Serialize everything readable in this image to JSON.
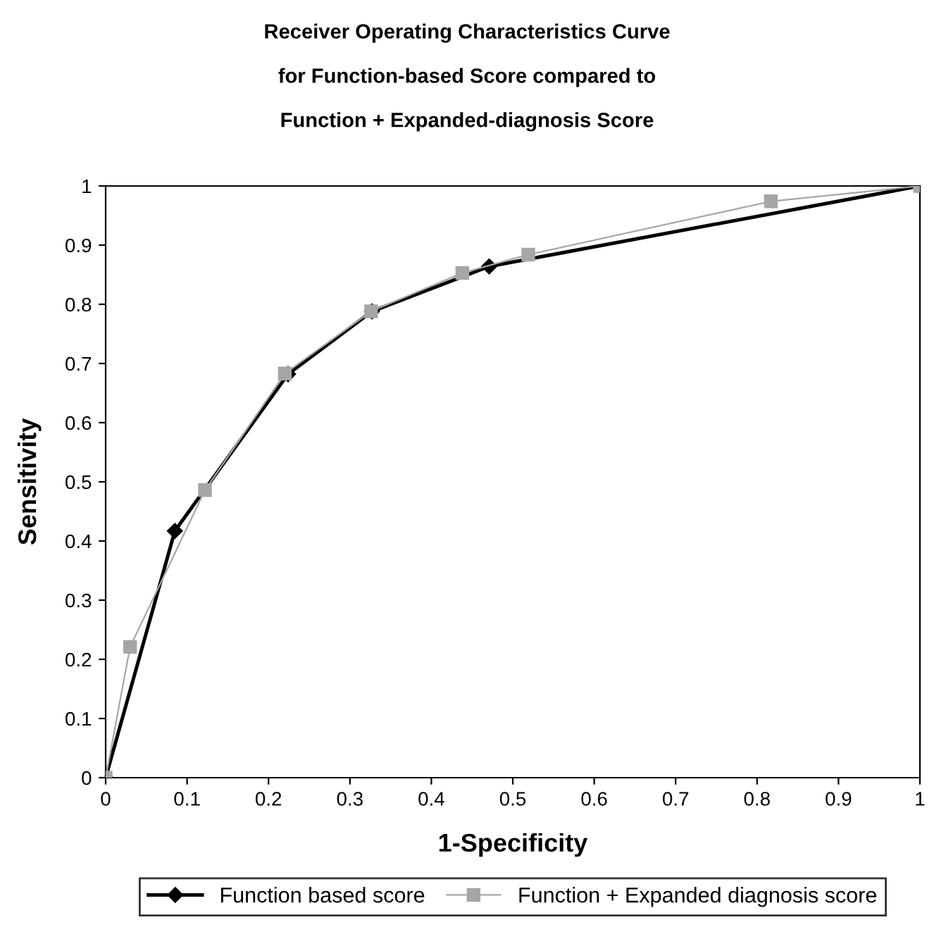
{
  "chart_data": {
    "type": "line",
    "title": "Receiver Operating Characteristics Curve\n\nfor Function-based Score compared to\n\nFunction + Expanded-diagnosis Score",
    "xlabel": "1-Specificity",
    "ylabel": "Sensitivity",
    "series": [
      {
        "name": "Function based score",
        "color": "#000000",
        "marker": "diamond",
        "x": [
          0,
          0.085,
          0.224,
          0.327,
          0.471,
          1
        ],
        "values": [
          0,
          0.417,
          0.682,
          0.788,
          0.864,
          1
        ]
      },
      {
        "name": "Function + Expanded diagnosis score",
        "color": "#a6a6a6",
        "marker": "square",
        "x": [
          0,
          0.03,
          0.122,
          0.22,
          0.326,
          0.438,
          0.519,
          0.817,
          1
        ],
        "values": [
          0,
          0.221,
          0.486,
          0.683,
          0.788,
          0.853,
          0.884,
          0.974,
          1
        ]
      }
    ],
    "xlim": [
      0,
      1
    ],
    "ylim": [
      0,
      1
    ],
    "xticks": [
      0,
      0.1,
      0.2,
      0.3,
      0.4,
      0.5,
      0.6,
      0.7,
      0.8,
      0.9,
      1
    ],
    "yticks": [
      0,
      0.1,
      0.2,
      0.3,
      0.4,
      0.5,
      0.6,
      0.7,
      0.8,
      0.9,
      1
    ],
    "grid": false,
    "legend": "bottom",
    "line_style": "solid"
  }
}
